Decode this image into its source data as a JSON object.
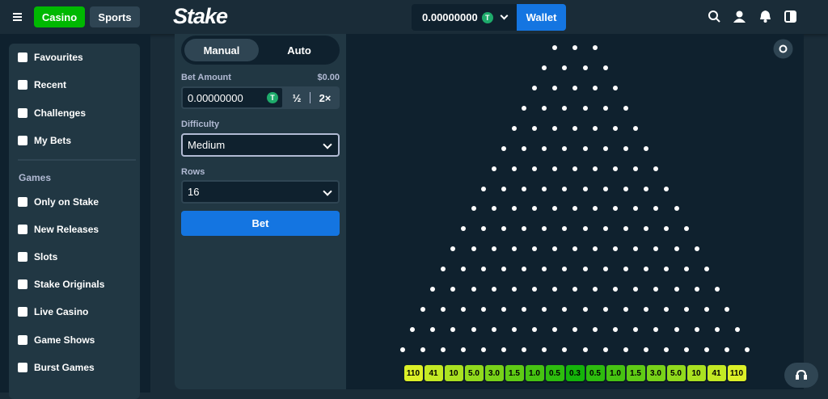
{
  "header": {
    "casino": "Casino",
    "sports": "Sports",
    "logo": "Stake",
    "balance": "0.00000000",
    "currency_icon": "T",
    "wallet": "Wallet"
  },
  "sidebar": {
    "top_items": [
      "Favourites",
      "Recent",
      "Challenges",
      "My Bets"
    ],
    "section_title": "Games",
    "game_items": [
      "Only on Stake",
      "New Releases",
      "Slots",
      "Stake Originals",
      "Live Casino",
      "Game Shows",
      "Burst Games"
    ]
  },
  "controls": {
    "tabs": [
      "Manual",
      "Auto"
    ],
    "bet_amount_label": "Bet Amount",
    "bet_amount_usd": "$0.00",
    "bet_input": "0.00000000",
    "currency_icon": "T",
    "half": "½",
    "double": "2×",
    "difficulty_label": "Difficulty",
    "difficulty": "Medium",
    "rows_label": "Rows",
    "rows": "16",
    "bet_button": "Bet"
  },
  "board": {
    "multipliers": [
      "110",
      "41",
      "10",
      "5.0",
      "3.0",
      "1.5",
      "1.0",
      "0.5",
      "0.3",
      "0.5",
      "1.0",
      "1.5",
      "3.0",
      "5.0",
      "10",
      "41",
      "110"
    ]
  }
}
